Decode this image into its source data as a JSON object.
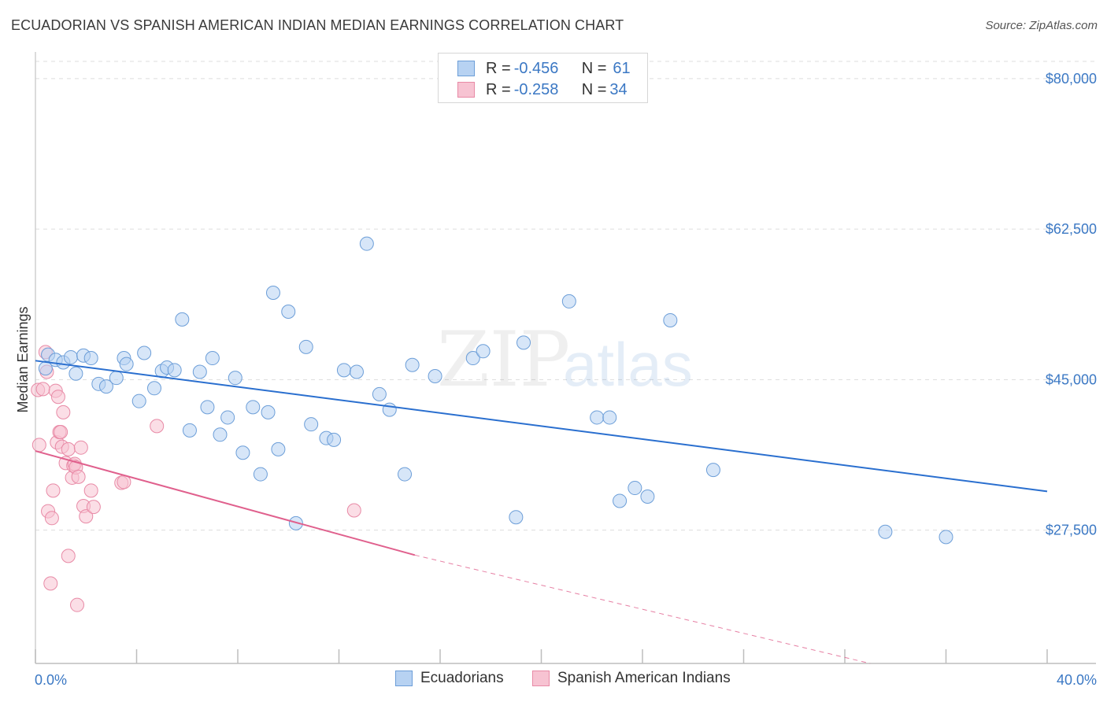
{
  "title": "ECUADORIAN VS SPANISH AMERICAN INDIAN MEDIAN EARNINGS CORRELATION CHART",
  "source": "Source: ZipAtlas.com",
  "legend": {
    "rows": [
      {
        "r_label": "R = ",
        "r_value": "-0.456",
        "n_label": "N = ",
        "n_value": "61"
      },
      {
        "r_label": "R = ",
        "r_value": "-0.258",
        "n_label": "N = ",
        "n_value": "34"
      }
    ]
  },
  "watermark": {
    "part1": "ZIP",
    "part2": "atlas"
  },
  "colors": {
    "blue_fill": "#b7d2f2",
    "blue_stroke": "#6c9ed8",
    "blue_line": "#2a6fcf",
    "pink_fill": "#f7c3d2",
    "pink_stroke": "#e88aa6",
    "pink_line": "#e0608d",
    "tick_text": "#3b78c4",
    "grid": "#dddddd"
  },
  "chart_data": {
    "type": "scatter",
    "title": "ECUADORIAN VS SPANISH AMERICAN INDIAN MEDIAN EARNINGS CORRELATION CHART",
    "xlabel": "",
    "ylabel": "Median Earnings",
    "xlim": [
      0,
      40
    ],
    "ylim": [
      12000,
      82000
    ],
    "x_tick_labels": [
      "0.0%",
      "40.0%"
    ],
    "y_ticks": [
      27500,
      45000,
      62500,
      80000
    ],
    "y_tick_labels": [
      "$27,500",
      "$45,000",
      "$62,500",
      "$80,000"
    ],
    "grid": true,
    "series": [
      {
        "name": "Ecuadorians",
        "color": "#b7d2f2",
        "points": [
          [
            0.4,
            46300
          ],
          [
            0.5,
            47900
          ],
          [
            0.8,
            47300
          ],
          [
            1.1,
            47000
          ],
          [
            1.4,
            47600
          ],
          [
            1.6,
            45700
          ],
          [
            1.9,
            47800
          ],
          [
            2.2,
            47500
          ],
          [
            2.5,
            44500
          ],
          [
            2.8,
            44200
          ],
          [
            3.2,
            45200
          ],
          [
            3.5,
            47500
          ],
          [
            3.6,
            46800
          ],
          [
            4.1,
            42500
          ],
          [
            4.3,
            48100
          ],
          [
            4.7,
            44000
          ],
          [
            5.0,
            46000
          ],
          [
            5.2,
            46400
          ],
          [
            5.5,
            46100
          ],
          [
            5.8,
            52000
          ],
          [
            6.1,
            39100
          ],
          [
            6.5,
            45900
          ],
          [
            6.8,
            41800
          ],
          [
            7.0,
            47500
          ],
          [
            7.3,
            38600
          ],
          [
            7.6,
            40600
          ],
          [
            7.9,
            45200
          ],
          [
            8.2,
            36500
          ],
          [
            8.6,
            41800
          ],
          [
            8.9,
            34000
          ],
          [
            9.2,
            41200
          ],
          [
            9.6,
            36900
          ],
          [
            9.4,
            55100
          ],
          [
            10.0,
            52900
          ],
          [
            10.3,
            28300
          ],
          [
            10.7,
            48800
          ],
          [
            10.9,
            39800
          ],
          [
            11.5,
            38200
          ],
          [
            11.8,
            38000
          ],
          [
            12.2,
            46100
          ],
          [
            12.7,
            45900
          ],
          [
            13.1,
            60800
          ],
          [
            13.6,
            43300
          ],
          [
            14.0,
            41500
          ],
          [
            14.6,
            34000
          ],
          [
            14.9,
            46700
          ],
          [
            15.8,
            45400
          ],
          [
            17.3,
            47500
          ],
          [
            17.7,
            48300
          ],
          [
            19.0,
            29000
          ],
          [
            19.3,
            49300
          ],
          [
            21.1,
            54100
          ],
          [
            22.2,
            40600
          ],
          [
            22.7,
            40600
          ],
          [
            23.1,
            30900
          ],
          [
            23.7,
            32400
          ],
          [
            24.2,
            31400
          ],
          [
            25.1,
            51900
          ],
          [
            26.8,
            34500
          ],
          [
            33.6,
            27300
          ],
          [
            36.0,
            26700
          ]
        ],
        "trend": {
          "x0": 0,
          "y0": 47200,
          "x1": 40,
          "y1": 32000
        }
      },
      {
        "name": "Spanish American Indians",
        "color": "#f7c3d2",
        "points": [
          [
            0.1,
            43800
          ],
          [
            0.15,
            37400
          ],
          [
            0.3,
            43900
          ],
          [
            0.4,
            48200
          ],
          [
            0.45,
            45900
          ],
          [
            0.5,
            29700
          ],
          [
            0.6,
            21300
          ],
          [
            0.65,
            28900
          ],
          [
            0.7,
            32100
          ],
          [
            0.8,
            43700
          ],
          [
            0.85,
            37700
          ],
          [
            0.9,
            43000
          ],
          [
            0.95,
            38900
          ],
          [
            1.0,
            38900
          ],
          [
            1.05,
            37200
          ],
          [
            1.1,
            41200
          ],
          [
            1.2,
            35300
          ],
          [
            1.3,
            36900
          ],
          [
            1.3,
            24500
          ],
          [
            1.45,
            33600
          ],
          [
            1.5,
            35000
          ],
          [
            1.55,
            35200
          ],
          [
            1.6,
            34800
          ],
          [
            1.65,
            18800
          ],
          [
            1.7,
            33700
          ],
          [
            1.8,
            37100
          ],
          [
            1.9,
            30300
          ],
          [
            2.0,
            29100
          ],
          [
            2.2,
            32100
          ],
          [
            2.3,
            30200
          ],
          [
            3.4,
            33000
          ],
          [
            3.5,
            33100
          ],
          [
            4.8,
            39600
          ],
          [
            12.6,
            29800
          ]
        ],
        "trend": {
          "x0": 0,
          "y0": 36700,
          "x1": 15,
          "y1": 24600
        },
        "trend_dashed": {
          "x0": 15,
          "y0": 24600,
          "x1": 33,
          "y1": 12000
        }
      }
    ],
    "legend_position": "top-center"
  },
  "bottom_legend": {
    "items": [
      {
        "label": "Ecuadorians"
      },
      {
        "label": "Spanish American Indians"
      }
    ]
  }
}
